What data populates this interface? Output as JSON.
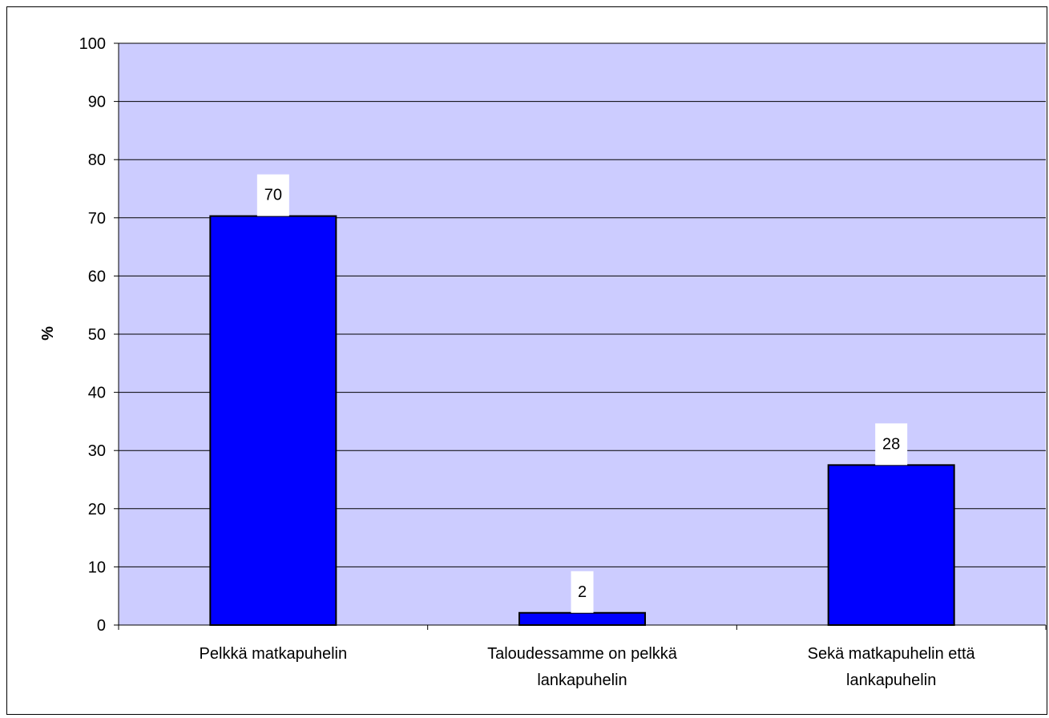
{
  "chart_data": {
    "type": "bar",
    "title": "",
    "xlabel": "",
    "ylabel": "%",
    "ylim": [
      0,
      100
    ],
    "yticks": [
      0,
      10,
      20,
      30,
      40,
      50,
      60,
      70,
      80,
      90,
      100
    ],
    "categories": [
      [
        "Pelkkä matkapuhelin"
      ],
      [
        "Taloudessamme on pelkkä",
        "lankapuhelin"
      ],
      [
        "Sekä matkapuhelin että",
        "lankapuhelin"
      ]
    ],
    "values": [
      70.3,
      2.1,
      27.5
    ],
    "data_labels": [
      "70",
      "2",
      "28"
    ],
    "grid": true,
    "legend": "none",
    "colors": {
      "bar_fill": "#0000ff",
      "bar_stroke": "#000000",
      "plot_background": "#ccccff",
      "gridline": "#000000",
      "label_background": "#ffffff"
    }
  }
}
